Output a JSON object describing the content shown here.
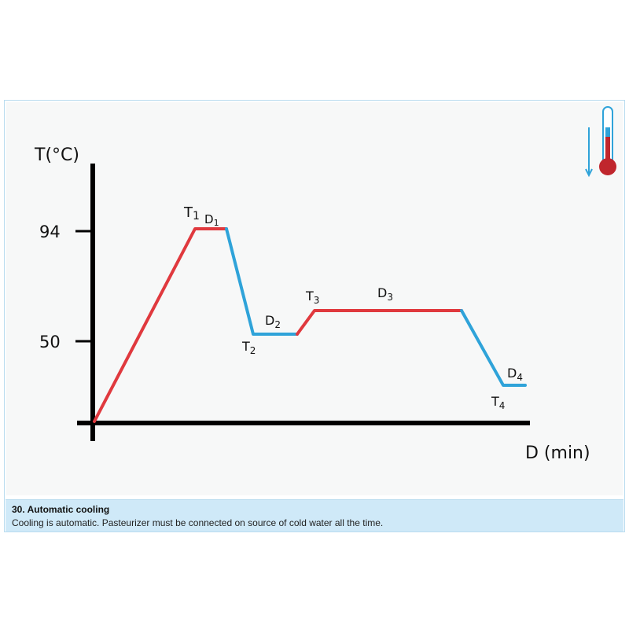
{
  "diagram": {
    "y_axis_label": "T(°C)",
    "x_axis_label": "D (min)",
    "y_ticks": [
      "94",
      "50"
    ],
    "points": {
      "T1": {
        "main": "T",
        "sub": "1"
      },
      "D1": {
        "main": "D",
        "sub": "1"
      },
      "T2": {
        "main": "T",
        "sub": "2"
      },
      "D2": {
        "main": "D",
        "sub": "2"
      },
      "T3": {
        "main": "T",
        "sub": "3"
      },
      "D3": {
        "main": "D",
        "sub": "3"
      },
      "T4": {
        "main": "T",
        "sub": "4"
      },
      "D4": {
        "main": "D",
        "sub": "4"
      }
    },
    "colors": {
      "heating": "#e0393e",
      "cooling": "#2fa3d9",
      "axis": "#000000"
    },
    "icons": [
      "thermometer-icon",
      "down-arrow-icon"
    ]
  },
  "caption": {
    "title": "30. Automatic cooling",
    "text": "Cooling is automatic. Pasteurizer must be connected on source of cold water all the time."
  }
}
